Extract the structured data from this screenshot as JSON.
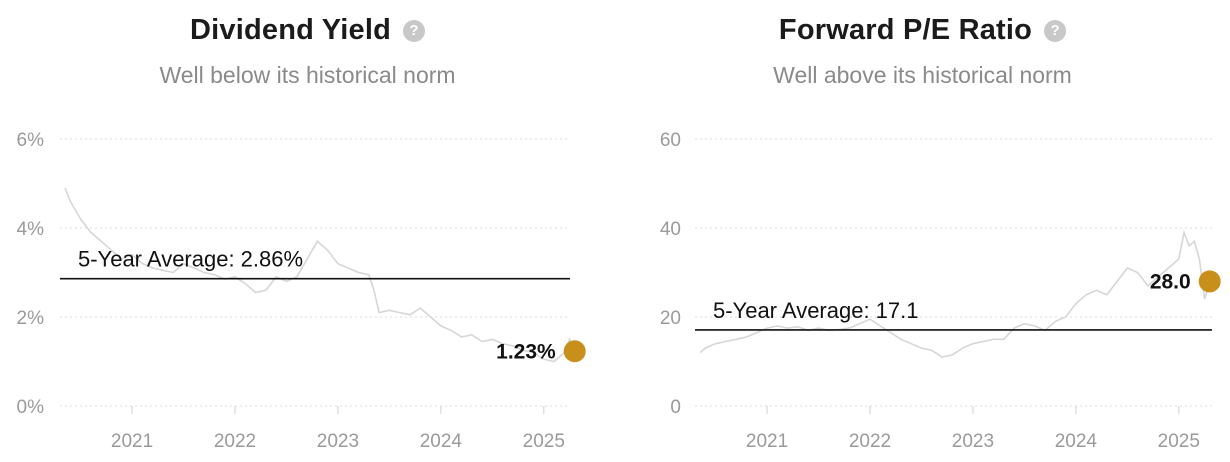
{
  "chart_data": [
    {
      "type": "line",
      "title": "Dividend Yield",
      "subtitle": "Well below its historical norm",
      "help_icon": "question-circle-icon",
      "y_ticks": [
        "0%",
        "2%",
        "4%",
        "6%"
      ],
      "y_tick_values": [
        0,
        2,
        4,
        6
      ],
      "x_ticks": [
        "2021",
        "2022",
        "2023",
        "2024",
        "2025"
      ],
      "x_tick_values": [
        2021,
        2022,
        2023,
        2024,
        2025
      ],
      "xlim": [
        2020.3,
        2025.4
      ],
      "ylim": [
        0,
        6
      ],
      "grid": "horizontal dotted",
      "line_color": "#d6d6d6",
      "average": {
        "label": "5-Year Average: 2.86%",
        "value": 2.86,
        "color": "#111111"
      },
      "current": {
        "label": "1.23%",
        "x": 2025.3,
        "value": 1.23,
        "color": "#c8901a"
      },
      "series": [
        {
          "x": [
            2020.35,
            2020.4,
            2020.5,
            2020.6,
            2020.7,
            2020.8,
            2020.9,
            2021.0,
            2021.1,
            2021.2,
            2021.3,
            2021.4,
            2021.5,
            2021.6,
            2021.7,
            2021.8,
            2021.9,
            2022.0,
            2022.1,
            2022.2,
            2022.3,
            2022.4,
            2022.5,
            2022.6,
            2022.7,
            2022.8,
            2022.9,
            2023.0,
            2023.1,
            2023.2,
            2023.3,
            2023.35,
            2023.4,
            2023.5,
            2023.6,
            2023.7,
            2023.8,
            2023.9,
            2024.0,
            2024.1,
            2024.2,
            2024.3,
            2024.4,
            2024.5,
            2024.6,
            2024.7,
            2024.8,
            2024.9,
            2025.0,
            2025.1,
            2025.2,
            2025.25,
            2025.3
          ],
          "values": [
            4.9,
            4.6,
            4.2,
            3.9,
            3.7,
            3.5,
            3.3,
            3.4,
            3.2,
            3.1,
            3.05,
            3.0,
            3.2,
            3.1,
            3.0,
            2.95,
            2.85,
            2.9,
            2.75,
            2.55,
            2.6,
            2.9,
            2.8,
            2.9,
            3.3,
            3.7,
            3.5,
            3.2,
            3.1,
            3.0,
            2.95,
            2.6,
            2.1,
            2.15,
            2.1,
            2.05,
            2.2,
            2.0,
            1.8,
            1.7,
            1.55,
            1.6,
            1.45,
            1.5,
            1.4,
            1.35,
            1.25,
            1.2,
            1.05,
            1.0,
            1.2,
            1.5,
            1.23
          ]
        }
      ]
    },
    {
      "type": "line",
      "title": "Forward P/E Ratio",
      "subtitle": "Well above its historical norm",
      "help_icon": "question-circle-icon",
      "y_ticks": [
        "0",
        "20",
        "40",
        "60"
      ],
      "y_tick_values": [
        0,
        20,
        40,
        60
      ],
      "x_ticks": [
        "2021",
        "2022",
        "2023",
        "2024",
        "2025"
      ],
      "x_tick_values": [
        2021,
        2022,
        2023,
        2024,
        2025
      ],
      "xlim": [
        2020.3,
        2025.4
      ],
      "ylim": [
        0,
        60
      ],
      "grid": "horizontal dotted",
      "line_color": "#d6d6d6",
      "average": {
        "label": "5-Year Average: 17.1",
        "value": 17.1,
        "color": "#111111"
      },
      "current": {
        "label": "28.0",
        "x": 2025.3,
        "value": 28.0,
        "color": "#c8901a"
      },
      "series": [
        {
          "x": [
            2020.35,
            2020.4,
            2020.5,
            2020.6,
            2020.7,
            2020.8,
            2020.9,
            2021.0,
            2021.1,
            2021.2,
            2021.3,
            2021.4,
            2021.5,
            2021.6,
            2021.7,
            2021.8,
            2021.9,
            2022.0,
            2022.1,
            2022.2,
            2022.3,
            2022.4,
            2022.5,
            2022.6,
            2022.7,
            2022.8,
            2022.9,
            2023.0,
            2023.1,
            2023.2,
            2023.3,
            2023.4,
            2023.5,
            2023.6,
            2023.7,
            2023.8,
            2023.9,
            2024.0,
            2024.1,
            2024.2,
            2024.3,
            2024.4,
            2024.5,
            2024.6,
            2024.7,
            2024.8,
            2024.9,
            2025.0,
            2025.05,
            2025.1,
            2025.15,
            2025.2,
            2025.25,
            2025.3
          ],
          "values": [
            12,
            13,
            14,
            14.5,
            15,
            15.5,
            16.5,
            17.5,
            18,
            17.5,
            17.8,
            17,
            17.5,
            17,
            17.2,
            17.5,
            18.5,
            19.5,
            18,
            16.5,
            15,
            14,
            13,
            12.5,
            11,
            11.5,
            13,
            14,
            14.5,
            15,
            15,
            17.5,
            18.5,
            18,
            17,
            19,
            20,
            23,
            25,
            26,
            25,
            28,
            31,
            30,
            27,
            29,
            31,
            33,
            39,
            36,
            37,
            33,
            24,
            28.0
          ]
        }
      ]
    }
  ]
}
